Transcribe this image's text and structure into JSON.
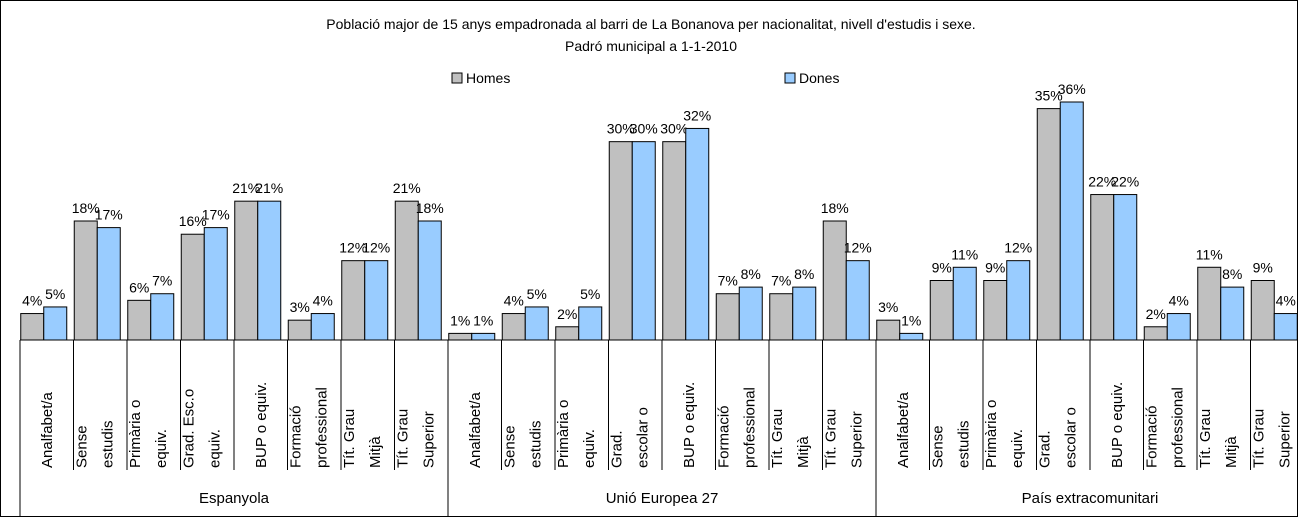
{
  "chart_data": {
    "type": "bar",
    "title": "Població major de 15 anys empadronada al barri de La Bonanova per nacionalitat, nivell d'estudis i sexe.",
    "subtitle": "Padró municipal a 1-1-2010",
    "groups": [
      {
        "name": "Espanyola",
        "categories": [
          [
            "Analfabet/a"
          ],
          [
            "Sense",
            "estudis"
          ],
          [
            "Primària o",
            "equiv."
          ],
          [
            "Grad. Esc.o",
            "equiv."
          ],
          [
            "BUP o equiv."
          ],
          [
            "Formació",
            "professional"
          ],
          [
            "Tít. Grau",
            "Mitjà"
          ],
          [
            "Tít. Grau",
            "Superior"
          ]
        ]
      },
      {
        "name": "Unió Europea 27",
        "categories": [
          [
            "Analfabet/a"
          ],
          [
            "Sense",
            "estudis"
          ],
          [
            "Primària o",
            "equiv."
          ],
          [
            "Grad.",
            "escolar o"
          ],
          [
            "BUP o equiv."
          ],
          [
            "Formació",
            "professional"
          ],
          [
            "Tít. Grau",
            "Mitjà"
          ],
          [
            "Tít. Grau",
            "Superior"
          ]
        ]
      },
      {
        "name": "País extracomunitari",
        "categories": [
          [
            "Analfabet/a"
          ],
          [
            "Sense",
            "estudis"
          ],
          [
            "Primària o",
            "equiv."
          ],
          [
            "Grad.",
            "escolar o"
          ],
          [
            "BUP o equiv."
          ],
          [
            "Formació",
            "professional"
          ],
          [
            "Tít. Grau",
            "Mitjà"
          ],
          [
            "Tít. Grau",
            "Superior"
          ]
        ]
      }
    ],
    "series": [
      {
        "name": "Homes",
        "color": "#c0c0c0",
        "values": [
          4,
          18,
          6,
          16,
          21,
          3,
          12,
          21,
          1,
          4,
          2,
          30,
          30,
          7,
          7,
          18,
          3,
          9,
          9,
          35,
          22,
          2,
          11,
          9
        ],
        "value_labels": [
          "4%",
          "18%",
          "6%",
          "16%",
          "21%",
          "3%",
          "12%",
          "21%",
          "1%",
          "4%",
          "2%",
          "30%",
          "30%",
          "7%",
          "7%",
          "18%",
          "3%",
          "9%",
          "9%",
          "35%",
          "22%",
          "2%",
          "11%",
          "9%"
        ]
      },
      {
        "name": "Dones",
        "color": "#99ccff",
        "values": [
          5,
          17,
          7,
          17,
          21,
          4,
          12,
          18,
          1,
          5,
          5,
          30,
          32,
          8,
          8,
          12,
          1,
          11,
          12,
          36,
          22,
          4,
          8,
          4
        ],
        "value_labels": [
          "5%",
          "17%",
          "7%",
          "17%",
          "21%",
          "4%",
          "12%",
          "18%",
          "1%",
          "5%",
          "5%",
          "30%",
          "32%",
          "8%",
          "8%",
          "12%",
          "1%",
          "11%",
          "12%",
          "36%",
          "22%",
          "4%",
          "8%",
          "4%"
        ]
      }
    ],
    "legend": "top"
  }
}
